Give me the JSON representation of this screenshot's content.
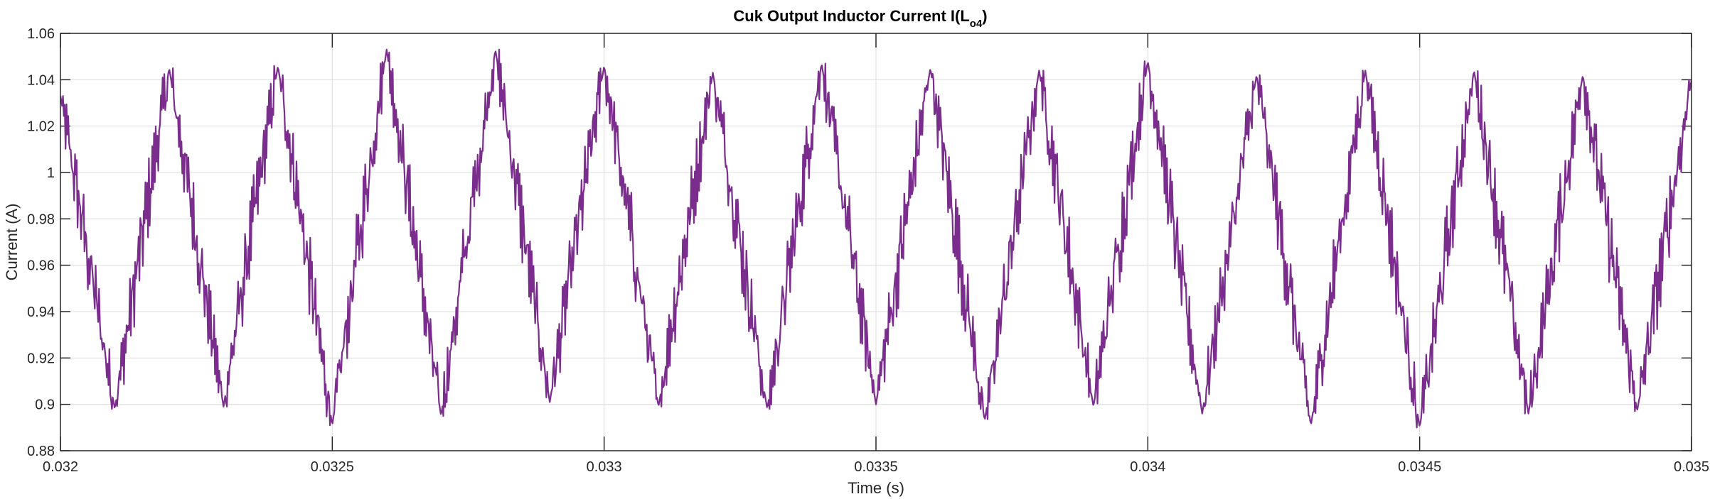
{
  "chart_data": {
    "type": "line",
    "title": {
      "main": "Cuk Output Inductor Current I(L",
      "subscript": "o4",
      "suffix": ")"
    },
    "xlabel": "Time (s)",
    "ylabel": "Current (A)",
    "xlim": [
      0.032,
      0.035
    ],
    "ylim": [
      0.88,
      1.06
    ],
    "xticks": [
      0.032,
      0.0325,
      0.033,
      0.0335,
      0.034,
      0.0345,
      0.035
    ],
    "xtick_labels": [
      "0.032",
      "0.0325",
      "0.033",
      "0.0335",
      "0.034",
      "0.0345",
      "0.035"
    ],
    "yticks": [
      0.88,
      0.9,
      0.92,
      0.94,
      0.96,
      0.98,
      1.0,
      1.02,
      1.04,
      1.06
    ],
    "ytick_labels": [
      "0.88",
      "0.9",
      "0.92",
      "0.94",
      "0.96",
      "0.98",
      "1",
      "1.02",
      "1.04",
      "1.06"
    ],
    "grid": true,
    "line_color": "#7B2D8E",
    "series": [
      {
        "waveform": "triangular ripple with high-frequency switching noise",
        "period": 0.0002,
        "mean": 0.972,
        "ripple_amplitude": 0.045,
        "noise_amplitude": 0.018,
        "peaks": [
          [
            0.032,
            1.033
          ],
          [
            0.0322,
            1.045
          ],
          [
            0.0324,
            1.046
          ],
          [
            0.0326,
            1.053
          ],
          [
            0.0328,
            1.053
          ],
          [
            0.033,
            1.046
          ],
          [
            0.0332,
            1.043
          ],
          [
            0.0334,
            1.047
          ],
          [
            0.0336,
            1.045
          ],
          [
            0.0338,
            1.044
          ],
          [
            0.034,
            1.048
          ],
          [
            0.0342,
            1.042
          ],
          [
            0.0344,
            1.044
          ],
          [
            0.0346,
            1.044
          ],
          [
            0.0348,
            1.042
          ],
          [
            0.035,
            1.04
          ]
        ],
        "troughs": [
          [
            0.0321,
            0.898
          ],
          [
            0.0323,
            0.899
          ],
          [
            0.0325,
            0.891
          ],
          [
            0.0327,
            0.895
          ],
          [
            0.0329,
            0.901
          ],
          [
            0.0331,
            0.899
          ],
          [
            0.0333,
            0.898
          ],
          [
            0.0335,
            0.9
          ],
          [
            0.0337,
            0.893
          ],
          [
            0.0339,
            0.899
          ],
          [
            0.0341,
            0.896
          ],
          [
            0.0343,
            0.891
          ],
          [
            0.0345,
            0.89
          ],
          [
            0.0347,
            0.896
          ],
          [
            0.0349,
            0.897
          ]
        ]
      }
    ]
  }
}
